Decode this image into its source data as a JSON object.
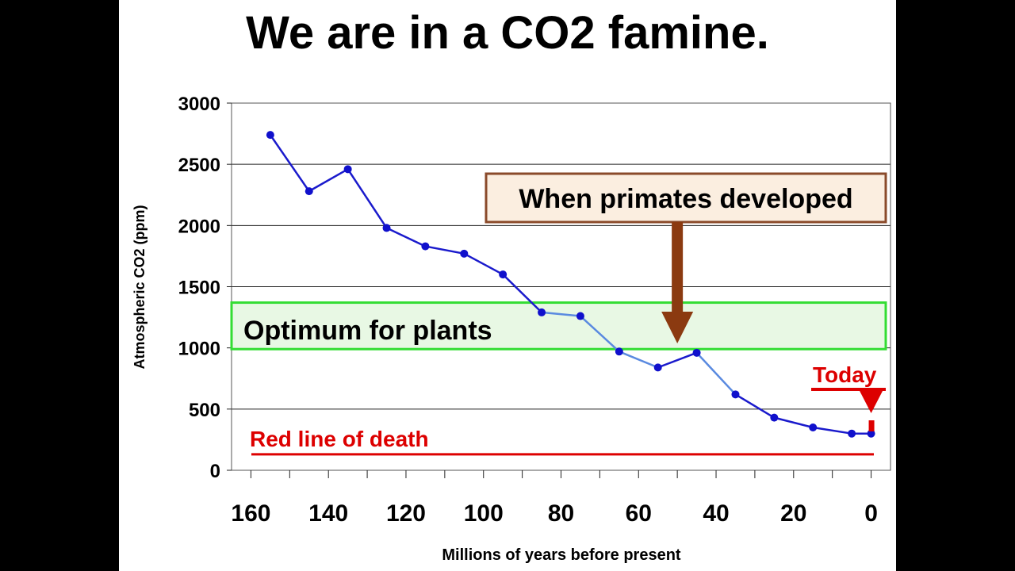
{
  "colors": {
    "line": "#1a1acc",
    "line_light": "#5a8ae0",
    "marker": "#1010cc",
    "optimum_border": "#33dd33",
    "optimum_fill": "#e8f8e4",
    "primates_border": "#8a4a2a",
    "primates_fill": "#fbeee0",
    "primates_arrow": "#8b3a10",
    "red": "#dd0000"
  },
  "chart_data": {
    "type": "line",
    "title": "We are in a CO2 famine.",
    "xlabel": "Millions of years before present",
    "ylabel": "Atmospheric CO2 (ppm)",
    "xlim": [
      165,
      -5
    ],
    "ylim": [
      0,
      3000
    ],
    "xticks": [
      160,
      140,
      120,
      100,
      80,
      60,
      40,
      20,
      0
    ],
    "yticks": [
      0,
      500,
      1000,
      1500,
      2000,
      2500,
      3000
    ],
    "grid": "horizontal",
    "x": [
      155,
      145,
      135,
      125,
      115,
      105,
      95,
      85,
      75,
      65,
      55,
      45,
      35,
      25,
      15,
      5,
      0
    ],
    "y": [
      2740,
      2280,
      2460,
      1980,
      1830,
      1770,
      1600,
      1290,
      1260,
      970,
      840,
      960,
      620,
      430,
      350,
      300,
      300
    ],
    "annotations": {
      "optimum": {
        "label": "Optimum for plants",
        "y_range": [
          990,
          1370
        ]
      },
      "primates": {
        "label": "When primates developed",
        "x": 50
      },
      "death_line": {
        "label": "Red line of death",
        "y": 150
      },
      "today": {
        "label": "Today",
        "x": 0
      }
    }
  }
}
